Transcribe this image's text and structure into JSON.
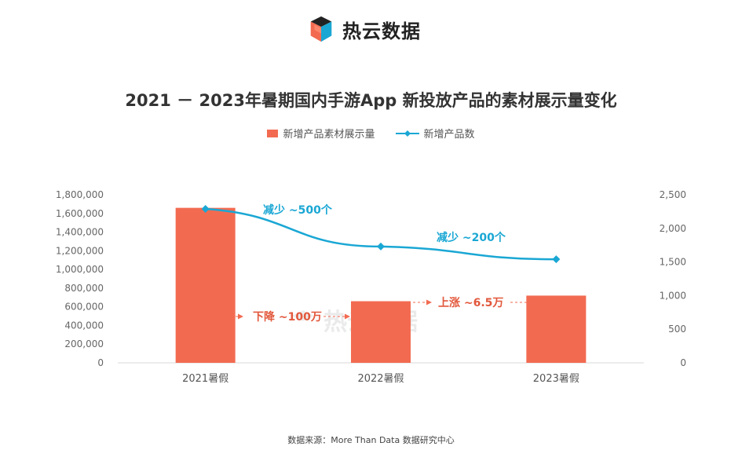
{
  "brand": {
    "name": "热云数据",
    "watermark": "热云数据"
  },
  "chart_data": {
    "type": "bar+line",
    "title": "2021 － 2023年暑期国内手游App 新投放产品的素材展示量变化",
    "categories": [
      "2021暑假",
      "2022暑假",
      "2023暑假"
    ],
    "series": [
      {
        "name": "新增产品素材展示量",
        "type": "bar",
        "axis": "left",
        "values": [
          1660000,
          660000,
          720000
        ],
        "color": "#f26b51"
      },
      {
        "name": "新增产品数",
        "type": "line",
        "axis": "right",
        "values": [
          2290,
          1730,
          1540
        ],
        "color": "#1aa7d4"
      }
    ],
    "y_left": {
      "min": 0,
      "max": 1800000,
      "step": 200000,
      "ticks": [
        "0",
        "200,000",
        "400,000",
        "600,000",
        "800,000",
        "1,000,000",
        "1,200,000",
        "1,400,000",
        "1,600,000",
        "1,800,000"
      ]
    },
    "y_right": {
      "min": 0,
      "max": 2500,
      "step": 500,
      "ticks": [
        "0",
        "500",
        "1,000",
        "1,500",
        "2,000",
        "2,500"
      ]
    },
    "annotations": {
      "line_drop_1": "减少 ~500个",
      "line_drop_2": "减少 ~200个",
      "bar_drop": "下降 ~100万",
      "bar_rise": "上涨 ~6.5万"
    }
  },
  "source": "数据来源：More Than Data 数据研究中心"
}
